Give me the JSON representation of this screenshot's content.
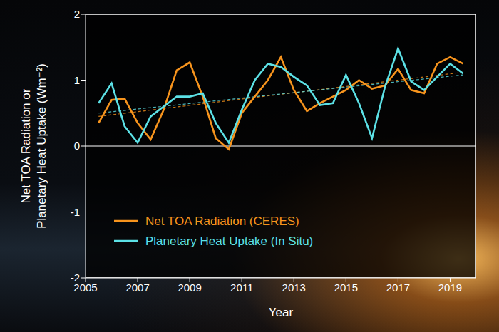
{
  "chart_data": {
    "type": "line",
    "xlabel": "Year",
    "ylabel": [
      "Net TOA Radiation or",
      "Planetary Heat Uptake (Wm⁻²)"
    ],
    "x": [
      2005.5,
      2006,
      2006.5,
      2007,
      2007.5,
      2008,
      2008.5,
      2009,
      2009.5,
      2010,
      2010.5,
      2011,
      2011.5,
      2012,
      2012.5,
      2013,
      2013.5,
      2014,
      2014.5,
      2015,
      2015.5,
      2016,
      2016.5,
      2017,
      2017.5,
      2018,
      2018.5,
      2019,
      2019.5
    ],
    "series": [
      {
        "name": "Net TOA Radiation (CERES)",
        "color": "#f7941d",
        "line_style": "solid",
        "marker": "none",
        "values": [
          0.35,
          0.7,
          0.72,
          0.35,
          0.1,
          0.55,
          1.15,
          1.27,
          0.75,
          0.12,
          -0.05,
          0.5,
          0.75,
          1.0,
          1.35,
          0.85,
          0.53,
          0.65,
          0.75,
          0.85,
          1.0,
          0.87,
          0.92,
          1.17,
          0.85,
          0.8,
          1.25,
          1.35,
          1.25
        ],
        "trend": [
          0.45,
          1.12
        ]
      },
      {
        "name": "Planetary Heat Uptake (In Situ)",
        "color": "#5ce1e6",
        "line_style": "solid",
        "marker": "none",
        "values": [
          0.65,
          0.95,
          0.3,
          0.05,
          0.45,
          0.6,
          0.75,
          0.75,
          0.8,
          0.35,
          0.05,
          0.55,
          1.0,
          1.25,
          1.2,
          1.05,
          0.92,
          0.62,
          0.65,
          1.08,
          0.65,
          0.12,
          0.9,
          1.48,
          0.98,
          0.85,
          1.05,
          1.25,
          1.1
        ],
        "trend": [
          0.5,
          1.08
        ]
      }
    ],
    "xlim": [
      2005,
      2020
    ],
    "xticks": [
      2005,
      2007,
      2009,
      2011,
      2013,
      2015,
      2017,
      2019
    ],
    "ylim": [
      -2,
      2
    ],
    "yticks": [
      -2,
      -1,
      0,
      1,
      2
    ],
    "grid": false,
    "legend": "lower left"
  }
}
